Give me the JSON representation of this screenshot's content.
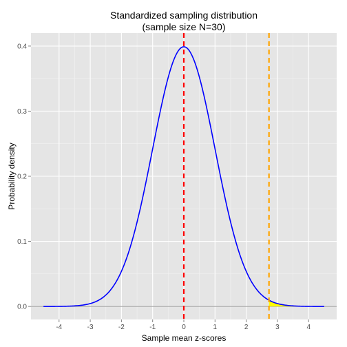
{
  "chart_data": {
    "type": "line",
    "title": "Standardized sampling distribution",
    "subtitle": "(sample size N=30)",
    "xlabel": "Sample mean z-scores",
    "ylabel": "Probability density",
    "xlim": [
      -4.9,
      4.9
    ],
    "ylim": [
      -0.02,
      0.42
    ],
    "x_ticks": [
      -4,
      -3,
      -2,
      -1,
      0,
      1,
      2,
      3,
      4
    ],
    "x_tick_labels": [
      "-4",
      "-3",
      "-2",
      "-1",
      "0",
      "1",
      "2",
      "3",
      "4"
    ],
    "y_ticks": [
      0.0,
      0.1,
      0.2,
      0.3,
      0.4
    ],
    "y_tick_labels": [
      "0.0",
      "0.1",
      "0.2",
      "0.3",
      "0.4"
    ],
    "grid": true,
    "curve": {
      "distribution": "standard normal density",
      "x_range": [
        -4.5,
        4.5
      ],
      "color": "#0000ff"
    },
    "zero_line_color": "#999999",
    "mean_line": {
      "x": 0,
      "color": "#ff0000",
      "style": "dashed"
    },
    "observed_line": {
      "x": 2.73,
      "color": "#ffa500",
      "style": "dashed"
    },
    "shaded_tail": {
      "from": 2.73,
      "to": 3.6,
      "color": "#ffff00"
    }
  }
}
